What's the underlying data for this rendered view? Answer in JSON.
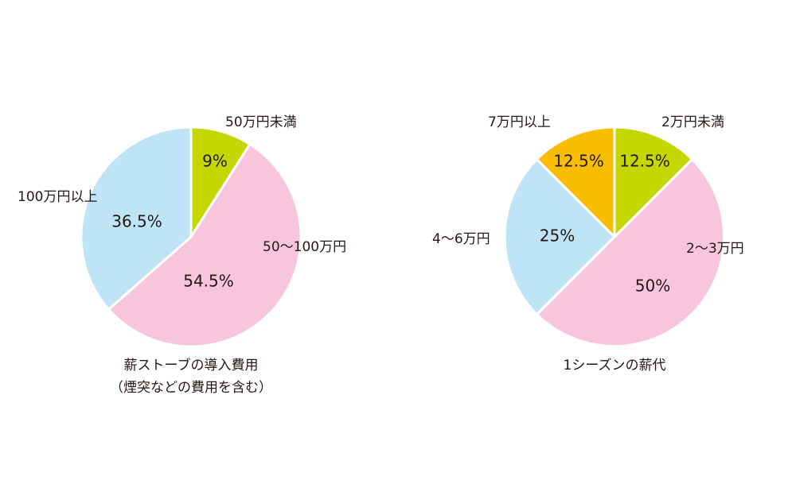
{
  "colors": {
    "green": "#c6d600",
    "pink": "#f7c6dc",
    "blue": "#bee4f6",
    "orange": "#f9bd00",
    "stroke": "#ffffff",
    "text": "#231815"
  },
  "chart_data": [
    {
      "type": "pie",
      "title_line1": "薪ストーブの導入費用",
      "title_line2": "（煙突などの費用を含む）",
      "slices": [
        {
          "label": "50万円未満",
          "value": 9,
          "pct_text": "9%",
          "color": "#c6d600"
        },
        {
          "label": "50〜100万円",
          "value": 54.5,
          "pct_text": "54.5%",
          "color": "#f7c6dc"
        },
        {
          "label": "100万円以上",
          "value": 36.5,
          "pct_text": "36.5%",
          "color": "#bee4f6"
        }
      ]
    },
    {
      "type": "pie",
      "title_line1": "1シーズンの薪代",
      "slices": [
        {
          "label": "2万円未満",
          "value": 12.5,
          "pct_text": "12.5%",
          "color": "#c6d600"
        },
        {
          "label": "2〜3万円",
          "value": 50,
          "pct_text": "50%",
          "color": "#f7c6dc"
        },
        {
          "label": "4〜6万円",
          "value": 25,
          "pct_text": "25%",
          "color": "#bee4f6"
        },
        {
          "label": "7万円以上",
          "value": 12.5,
          "pct_text": "12.5%",
          "color": "#f9bd00"
        }
      ]
    }
  ]
}
